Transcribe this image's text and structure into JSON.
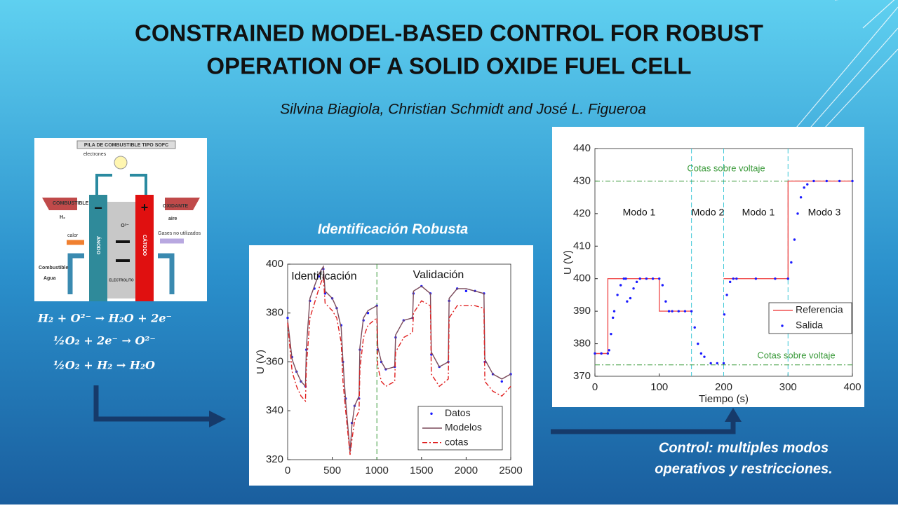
{
  "title_lines": [
    "CONSTRAINED MODEL-BASED CONTROL FOR ROBUST",
    "OPERATION OF A SOLID OXIDE FUEL CELL"
  ],
  "authors": "Silvina Biagiola, Christian Schmidt and José L. Figueroa",
  "diagram": {
    "title": "PILA DE COMBUSTIBLE TIPO SOFC",
    "electrons": "electrones",
    "fuel": "COMBUSTIBLE",
    "fuel_gas": "H₂",
    "oxidant": "OXIDANTE",
    "oxidant_gas": "aire",
    "anode": "ÁNODO",
    "cathode": "CÁTODO",
    "heat": "calor",
    "unused_gases": "Gases no utilizados",
    "fuel_out": "Combustible",
    "water": "Agua",
    "electrolyte": "ELECTROLITO",
    "ion": "O²⁻",
    "minus": "−",
    "plus": "+"
  },
  "equations": [
    "H₂ + O²⁻ → H₂O + 2e⁻",
    "½O₂ + 2e⁻ → O²⁻",
    "½O₂ + H₂ → H₂O"
  ],
  "captions": {
    "identification": "Identificación Robusta",
    "control_lines": [
      "Control: multiples modos",
      "operativos y restricciones."
    ]
  },
  "chart_data": [
    {
      "type": "line",
      "ylabel": "U (V)",
      "x": [
        0,
        50,
        100,
        150,
        200,
        210,
        250,
        300,
        350,
        400,
        420,
        500,
        550,
        600,
        620,
        650,
        700,
        720,
        750,
        800,
        810,
        850,
        900,
        1000,
        1010,
        1050,
        1100,
        1200,
        1210,
        1300,
        1400,
        1410,
        1500,
        1600,
        1610,
        1700,
        1800,
        1810,
        1900,
        2000,
        2100,
        2200,
        2210,
        2300,
        2400,
        2500
      ],
      "series": [
        {
          "name": "Datos",
          "color": "#1a1aff",
          "style": "dots",
          "values": [
            378,
            362,
            356,
            352,
            350,
            365,
            385,
            390,
            395,
            398,
            388,
            386,
            382,
            375,
            360,
            345,
            325,
            335,
            342,
            345,
            365,
            377,
            380,
            383,
            365,
            360,
            357,
            358,
            370,
            377,
            378,
            388,
            391,
            388,
            363,
            358,
            360,
            385,
            390,
            389,
            389,
            388,
            360,
            355,
            352,
            355
          ]
        },
        {
          "name": "Modelos",
          "color": "#7a4a5a",
          "style": "solid",
          "values": [
            377,
            361,
            356,
            352,
            350,
            366,
            386,
            391,
            396,
            399,
            389,
            386,
            382,
            374,
            360,
            344,
            323,
            334,
            342,
            346,
            366,
            378,
            381,
            383,
            366,
            360,
            357,
            358,
            371,
            377,
            378,
            389,
            391,
            388,
            364,
            358,
            360,
            386,
            390,
            390,
            389,
            388,
            361,
            355,
            353,
            355
          ]
        },
        {
          "name": "cotas",
          "color": "#e02020",
          "style": "dashdot",
          "values": [
            376,
            356,
            350,
            346,
            344,
            358,
            378,
            384,
            390,
            395,
            384,
            381,
            378,
            368,
            352,
            340,
            322,
            328,
            336,
            340,
            357,
            370,
            375,
            378,
            358,
            352,
            350,
            352,
            364,
            370,
            372,
            380,
            385,
            383,
            355,
            350,
            353,
            378,
            383,
            383,
            383,
            382,
            352,
            348,
            346,
            350
          ]
        }
      ],
      "xlim": [
        0,
        2500
      ],
      "xticks": [
        0,
        500,
        1000,
        1500,
        2000,
        2500
      ],
      "ylim": [
        320,
        400
      ],
      "yticks": [
        320,
        340,
        360,
        380,
        400
      ],
      "vlines": [
        1000
      ],
      "vline_color": "#3a9a3a",
      "hlines": [],
      "hline_color": "#3a9a3a",
      "annotations": [
        "Identificación",
        "Validación"
      ],
      "legend": "lower right"
    },
    {
      "type": "line",
      "xlabel": "Tiempo (s)",
      "ylabel": "U (V)",
      "series": [
        {
          "name": "Referencia",
          "color": "#f05050",
          "style": "solid",
          "x": [
            0,
            20,
            20,
            100,
            100,
            150,
            200,
            200,
            300,
            300,
            400
          ],
          "values": [
            377,
            377,
            400,
            400,
            390,
            390,
            null,
            400,
            400,
            430,
            430
          ]
        },
        {
          "name": "Salida",
          "color": "#1a1aff",
          "style": "dots",
          "x": [
            0,
            10,
            20,
            22,
            25,
            28,
            30,
            35,
            40,
            45,
            48,
            50,
            55,
            60,
            65,
            70,
            80,
            90,
            100,
            105,
            110,
            115,
            120,
            130,
            140,
            150,
            155,
            160,
            165,
            170,
            180,
            190,
            200,
            201,
            205,
            210,
            215,
            220,
            250,
            280,
            300,
            305,
            310,
            315,
            320,
            325,
            330,
            340,
            360,
            380,
            400
          ],
          "values": [
            377,
            377,
            377,
            378,
            383,
            388,
            390,
            395,
            398,
            400,
            400,
            393,
            394,
            397,
            399,
            400,
            400,
            400,
            400,
            398,
            393,
            390,
            390,
            390,
            390,
            390,
            385,
            380,
            377,
            376,
            374,
            374,
            374,
            389,
            395,
            399,
            400,
            400,
            400,
            400,
            400,
            405,
            412,
            420,
            425,
            428,
            429,
            430,
            430,
            430,
            430
          ]
        }
      ],
      "xlim": [
        0,
        400
      ],
      "xticks": [
        0,
        100,
        200,
        300,
        400
      ],
      "ylim": [
        370,
        440
      ],
      "yticks": [
        370,
        380,
        390,
        400,
        410,
        420,
        430,
        440
      ],
      "vlines": [
        150,
        200,
        300
      ],
      "vline_color": "#40c8d8",
      "hlines": [
        430,
        373.5
      ],
      "hline_color": "#3a9a3a",
      "annotations": [
        "Cotas sobre voltaje",
        "Cotas sobre voltaje",
        "Modo 1",
        "Modo 2",
        "Modo 1",
        "Modo 3"
      ],
      "legend": "center right"
    }
  ]
}
